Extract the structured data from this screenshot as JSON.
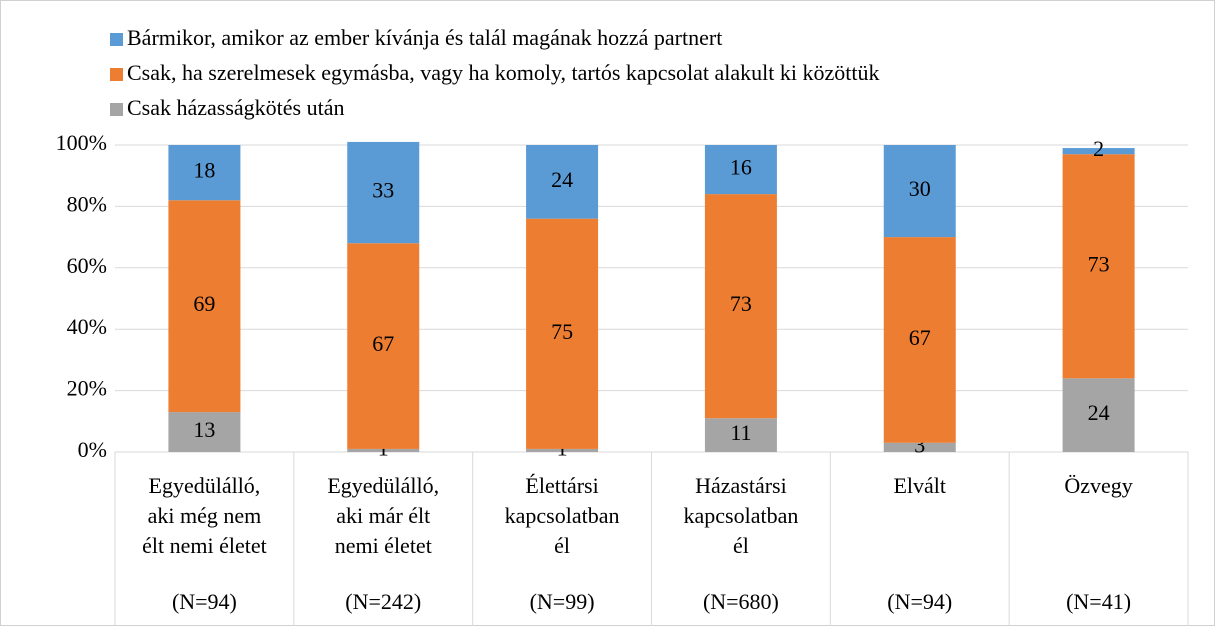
{
  "chart_data": {
    "type": "stacked_bar",
    "categories": [
      [
        "Egyedülálló,",
        "aki még nem",
        "élt nemi életet"
      ],
      [
        "Egyedülálló,",
        "aki már élt",
        "nemi életet"
      ],
      [
        "Élettársi",
        "kapcsolatban",
        "él"
      ],
      [
        "Házastársi",
        "kapcsolatban",
        "él"
      ],
      [
        "Elvált"
      ],
      [
        "Özvegy"
      ]
    ],
    "sample_sizes": [
      "(N=94)",
      "(N=242)",
      "(N=99)",
      "(N=680)",
      "(N=94)",
      "(N=41)"
    ],
    "series": [
      {
        "name": "Csak házasságkötés után",
        "color": "#a5a5a5",
        "values": [
          13,
          1,
          1,
          11,
          3,
          24
        ]
      },
      {
        "name": "Csak, ha szerelmesek egymásba, vagy ha komoly, tartós kapcsolat alakult ki közöttük",
        "color": "#ed7d31",
        "values": [
          69,
          67,
          75,
          73,
          67,
          73
        ]
      },
      {
        "name": "Bármikor, amikor az ember kívánja és talál magának hozzá partnert",
        "color": "#5b9bd5",
        "values": [
          18,
          33,
          24,
          16,
          30,
          2
        ]
      }
    ],
    "ylim": [
      0,
      100
    ],
    "yticks": [
      {
        "value": 0,
        "label": "0%"
      },
      {
        "value": 20,
        "label": "20%"
      },
      {
        "value": 40,
        "label": "40%"
      },
      {
        "value": 60,
        "label": "60%"
      },
      {
        "value": 80,
        "label": "80%"
      },
      {
        "value": 100,
        "label": "100%"
      }
    ],
    "grid": true,
    "legend": "top"
  }
}
